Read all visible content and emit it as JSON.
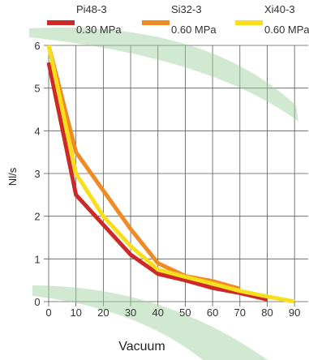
{
  "chart_data": {
    "type": "line",
    "xlabel": "Vacuum",
    "ylabel": "Nl/s",
    "x_ticks": [
      "0",
      "10",
      "20",
      "30",
      "40",
      "50",
      "60",
      "70",
      "80",
      "90"
    ],
    "y_ticks": [
      "0",
      "1",
      "2",
      "3",
      "4",
      "5",
      "6"
    ],
    "xlim": [
      0,
      95
    ],
    "ylim": [
      0,
      6
    ],
    "grid": "vertical-and-horizontal",
    "legend_position": "top",
    "series": [
      {
        "name": "Pi48-3",
        "subtitle": "0.30 MPa",
        "color": "#cc2a27",
        "x": [
          0,
          10,
          20,
          30,
          40,
          50,
          60,
          70,
          80
        ],
        "y": [
          5.6,
          2.5,
          1.8,
          1.1,
          0.65,
          0.5,
          0.32,
          0.2,
          0.05
        ]
      },
      {
        "name": "Si32-3",
        "subtitle": "0.60 MPa",
        "color": "#f08a24",
        "x": [
          0,
          10,
          20,
          30,
          40,
          50,
          60,
          70
        ],
        "y": [
          6.0,
          3.5,
          2.6,
          1.7,
          0.9,
          0.6,
          0.48,
          0.3
        ]
      },
      {
        "name": "Xi40-3",
        "subtitle": "0.60 MPa",
        "color": "#f7df1e",
        "x": [
          0,
          10,
          20,
          30,
          40,
          50,
          60,
          70,
          80,
          90
        ],
        "y": [
          6.0,
          3.0,
          2.0,
          1.3,
          0.75,
          0.58,
          0.42,
          0.25,
          0.12,
          0.0
        ]
      }
    ]
  }
}
